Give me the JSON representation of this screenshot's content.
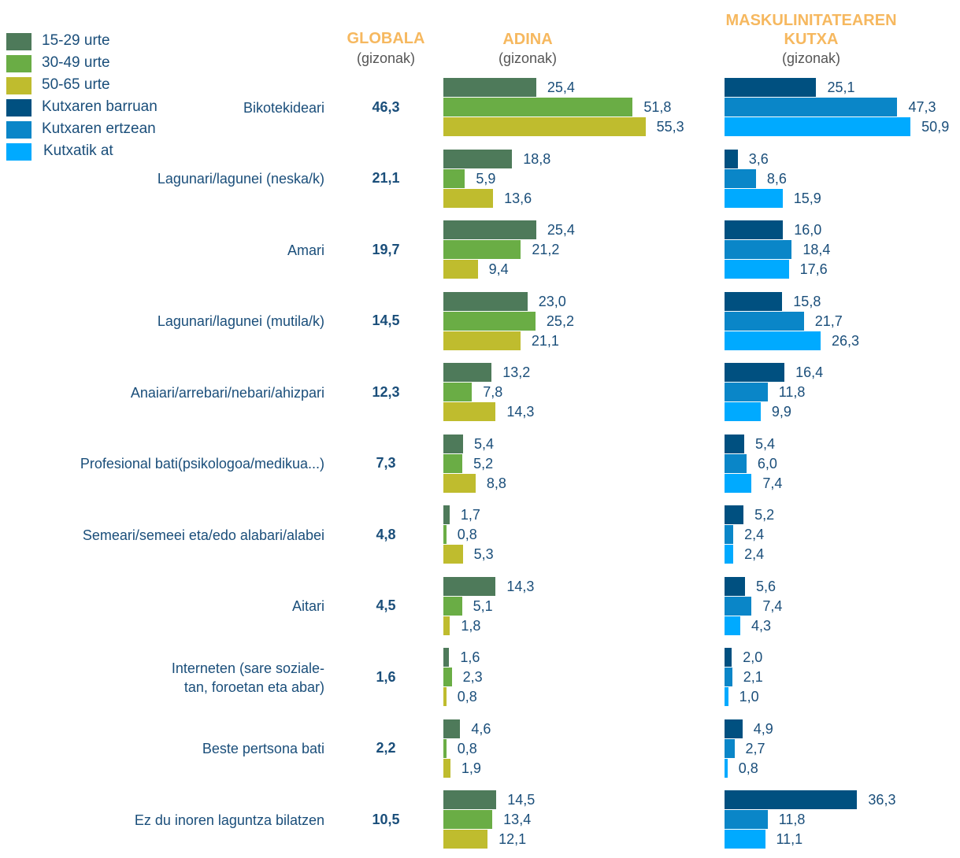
{
  "chart_data": {
    "type": "bar",
    "categories": [
      "Bikotekideari",
      "Lagunari/lagunei (neska/k)",
      "Amari",
      "Lagunari/lagunei (mutila/k)",
      "Anaiari/arrebari/nebari/ahizpari",
      "Profesional bati(psikologoa/medikua...)",
      "Semeari/semeei eta/edo alabari/alabei",
      "Aitari",
      "Interneten (sare soziale-\ntan, foroetan eta abar)",
      "Beste pertsona bati",
      "Ez du inoren laguntza bilatzen"
    ],
    "global": {
      "title": "GLOBALA",
      "subtitle": "(gizonak)",
      "values": [
        46.3,
        21.1,
        19.7,
        14.5,
        12.3,
        7.3,
        4.8,
        4.5,
        1.6,
        2.2,
        10.5
      ],
      "value_labels": [
        "46,3",
        "21,1",
        "19,7",
        "14,5",
        "12,3",
        "7,3",
        "4,8",
        "4,5",
        "1,6",
        "2,2",
        "10,5"
      ]
    },
    "panels": [
      {
        "title": "ADINA",
        "subtitle": "(gizonak)",
        "series": [
          {
            "name": "15-29 urte",
            "color": "#4e7a5a",
            "values": [
              25.4,
              18.8,
              25.4,
              23.0,
              13.2,
              5.4,
              1.7,
              14.3,
              1.6,
              4.6,
              14.5
            ],
            "value_labels": [
              "25,4",
              "18,8",
              "25,4",
              "23,0",
              "13,2",
              "5,4",
              "1,7",
              "14,3",
              "1,6",
              "4,6",
              "14,5"
            ]
          },
          {
            "name": "30-49 urte",
            "color": "#6aad45",
            "values": [
              51.8,
              5.9,
              21.2,
              25.2,
              7.8,
              5.2,
              0.8,
              5.1,
              2.3,
              0.8,
              13.4
            ],
            "value_labels": [
              "51,8",
              "5,9",
              "21,2",
              "25,2",
              "7,8",
              "5,2",
              "0,8",
              "5,1",
              "2,3",
              "0,8",
              "13,4"
            ]
          },
          {
            "name": "50-65 urte",
            "color": "#bfbc2e",
            "values": [
              55.3,
              13.6,
              9.4,
              21.1,
              14.3,
              8.8,
              5.3,
              1.8,
              0.8,
              1.9,
              12.1
            ],
            "value_labels": [
              "55,3",
              "13,6",
              "9,4",
              "21,1",
              "14,3",
              "8,8",
              "5,3",
              "1,8",
              "0,8",
              "1,9",
              "12,1"
            ]
          }
        ]
      },
      {
        "title": "MASKULINITATEAREN KUTXA",
        "subtitle": "(gizonak)",
        "series": [
          {
            "name": "Kutxaren barruan",
            "color": "#005080",
            "values": [
              25.1,
              3.6,
              16.0,
              15.8,
              16.4,
              5.4,
              5.2,
              5.6,
              2.0,
              4.9,
              36.3
            ],
            "value_labels": [
              "25,1",
              "3,6",
              "16,0",
              "15,8",
              "16,4",
              "5,4",
              "5,2",
              "5,6",
              "2,0",
              "4,9",
              "36,3"
            ]
          },
          {
            "name": "Kutxaren ertzean",
            "color": "#0a86c8",
            "values": [
              47.3,
              8.6,
              18.4,
              21.7,
              11.8,
              6.0,
              2.4,
              7.4,
              2.1,
              2.7,
              11.8
            ],
            "value_labels": [
              "47,3",
              "8,6",
              "18,4",
              "21,7",
              "11,8",
              "6,0",
              "2,4",
              "7,4",
              "2,1",
              "2,7",
              "11,8"
            ]
          },
          {
            "name": "Kutxatik at",
            "color": "#00aaff",
            "values": [
              50.9,
              15.9,
              17.6,
              26.3,
              9.9,
              7.4,
              2.4,
              4.3,
              1.0,
              0.8,
              11.1
            ],
            "value_labels": [
              "50,9",
              "15,9",
              "17,6",
              "26,3",
              "9,9",
              "7,4",
              "2,4",
              "4,3",
              "1,0",
              "0,8",
              "11,1"
            ]
          }
        ]
      }
    ]
  }
}
